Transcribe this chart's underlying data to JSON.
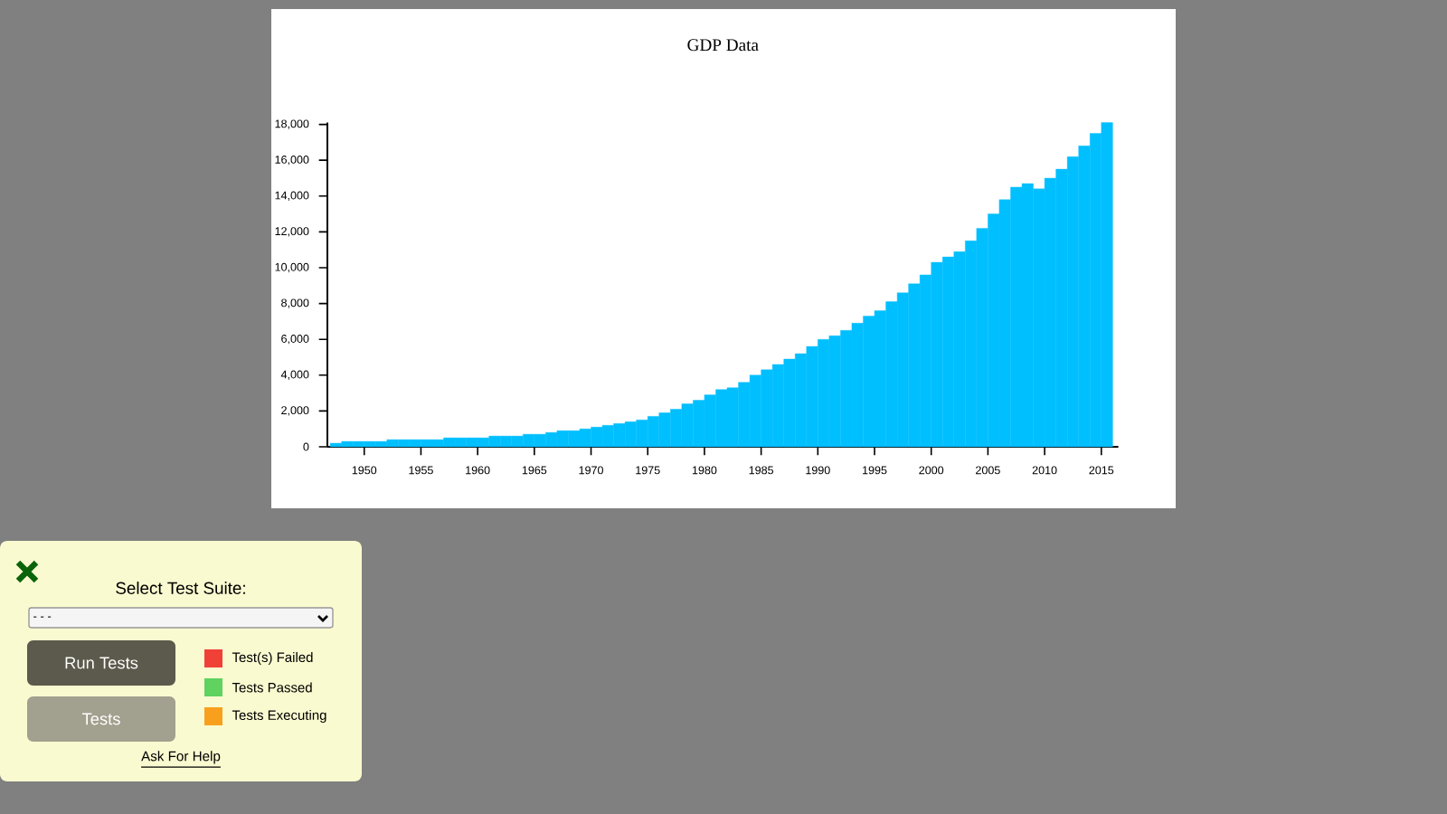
{
  "chart_data": {
    "type": "bar",
    "title": "GDP Data",
    "x": [
      "1947-07",
      "1948-07",
      "1949-07",
      "1950-07",
      "1951-07",
      "1952-07",
      "1953-07",
      "1954-07",
      "1955-07",
      "1956-07",
      "1957-07",
      "1958-07",
      "1959-07",
      "1960-07",
      "1961-07",
      "1962-07",
      "1963-07",
      "1964-07",
      "1965-07",
      "1966-07",
      "1967-07",
      "1968-07",
      "1969-07",
      "1970-07",
      "1971-07",
      "1972-07",
      "1973-07",
      "1974-07",
      "1975-07",
      "1976-07",
      "1977-07",
      "1978-07",
      "1979-07",
      "1980-07",
      "1981-07",
      "1982-07",
      "1983-07",
      "1984-07",
      "1985-07",
      "1986-07",
      "1987-07",
      "1988-07",
      "1989-07",
      "1990-07",
      "1991-07",
      "1992-07",
      "1993-07",
      "1994-07",
      "1995-07",
      "1996-07",
      "1997-07",
      "1998-07",
      "1999-07",
      "2000-07",
      "2001-07",
      "2002-07",
      "2003-07",
      "2004-07",
      "2005-07",
      "2006-07",
      "2007-07",
      "2008-07",
      "2009-07",
      "2010-07",
      "2011-07",
      "2012-07",
      "2013-07",
      "2014-07",
      "2015-07"
    ],
    "values": [
      200,
      300,
      300,
      300,
      300,
      400,
      400,
      400,
      400,
      400,
      500,
      500,
      500,
      500,
      600,
      600,
      600,
      700,
      700,
      800,
      900,
      900,
      1000,
      1100,
      1200,
      1300,
      1400,
      1500,
      1700,
      1900,
      2100,
      2400,
      2600,
      2900,
      3200,
      3300,
      3600,
      4000,
      4300,
      4600,
      4900,
      5200,
      5600,
      6000,
      6200,
      6500,
      6900,
      7300,
      7600,
      8100,
      8600,
      9100,
      9600,
      10300,
      10600,
      10900,
      11500,
      12200,
      13000,
      13800,
      14500,
      14700,
      14400,
      15000,
      15500,
      16200,
      16800,
      17500,
      18100
    ],
    "color": "#00bfff",
    "xlim": [
      "1946-10",
      "2016-07"
    ],
    "xticks": [
      "1950",
      "1955",
      "1960",
      "1965",
      "1970",
      "1975",
      "1980",
      "1985",
      "1990",
      "1995",
      "2000",
      "2005",
      "2010",
      "2015"
    ],
    "ylim": [
      0,
      18100
    ],
    "yticks": [
      0,
      {
        "value": 2000,
        "label": "2,000"
      },
      {
        "value": 4000,
        "label": "4,000"
      },
      {
        "value": 6000,
        "label": "6,000"
      },
      {
        "value": 8000,
        "label": "8,000"
      },
      {
        "value": 10000,
        "label": "10,000"
      },
      {
        "value": 12000,
        "label": "12,000"
      },
      {
        "value": 14000,
        "label": "14,000"
      },
      {
        "value": 16000,
        "label": "16,000"
      },
      {
        "value": 18000,
        "label": "18,000"
      }
    ],
    "annotations": [
      "Select Test Suite:",
      "- - -",
      "Run Tests",
      "Tests",
      "Test(s) Failed",
      "Tests Passed",
      "Tests Executing",
      "Ask For Help"
    ]
  }
}
